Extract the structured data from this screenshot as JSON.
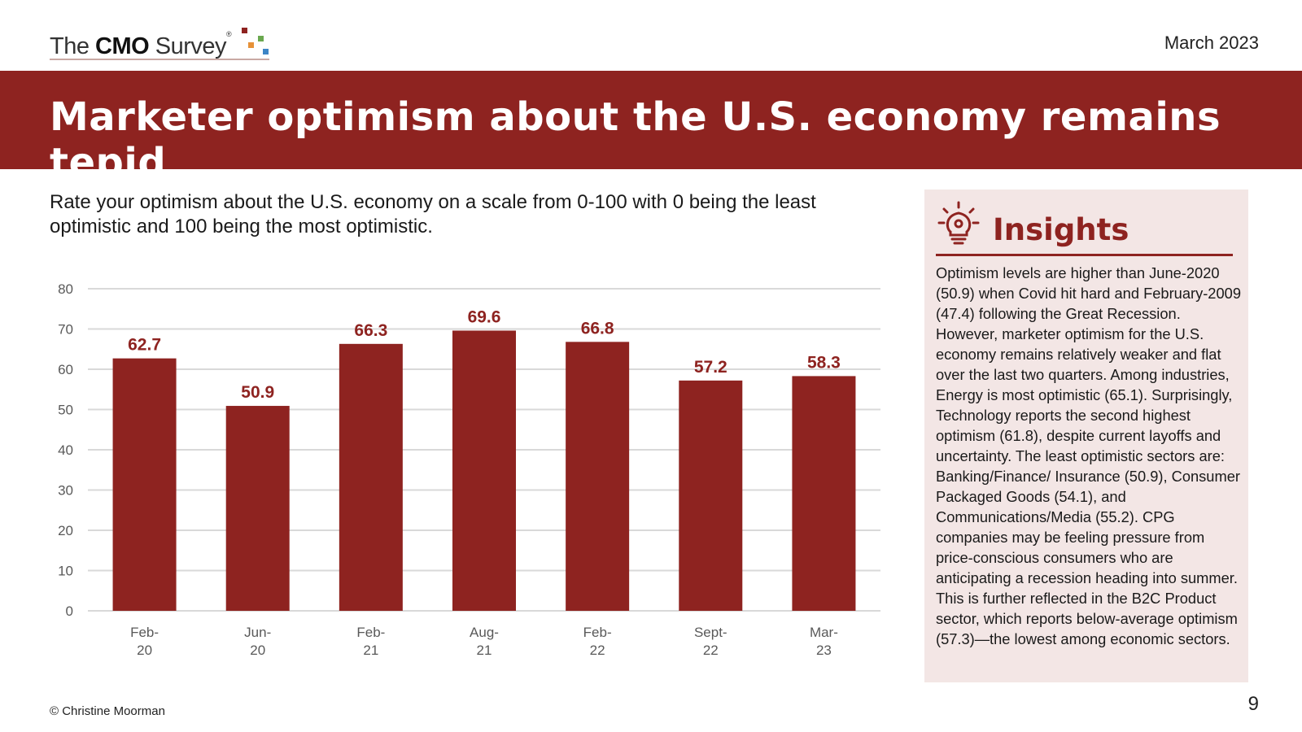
{
  "header": {
    "logo_pre": "The ",
    "logo_bold": "CMO",
    "logo_post": " Survey",
    "logo_reg": "®",
    "date": "March 2023"
  },
  "title": "Marketer optimism about the U.S. economy remains tepid",
  "question": "Rate your optimism about the U.S. economy on a scale from 0-100 with 0 being the least optimistic and 100 being the most optimistic.",
  "chart_data": {
    "type": "bar",
    "title": "",
    "xlabel": "",
    "ylabel": "",
    "categories": [
      [
        "Feb-",
        "20"
      ],
      [
        "Jun-",
        "20"
      ],
      [
        "Feb-",
        "21"
      ],
      [
        "Aug-",
        "21"
      ],
      [
        "Feb-",
        "22"
      ],
      [
        "Sept-",
        "22"
      ],
      [
        "Mar-",
        "23"
      ]
    ],
    "values": [
      62.7,
      50.9,
      66.3,
      69.6,
      66.8,
      57.2,
      58.3
    ],
    "ylim": [
      0,
      80
    ],
    "yticks": [
      0,
      10,
      20,
      30,
      40,
      50,
      60,
      70,
      80
    ],
    "grid": true,
    "bar_color": "#8e2320",
    "label_color": "#8e2320"
  },
  "insights": {
    "title": "Insights",
    "icon": "lightbulb-gear-icon",
    "text": "Optimism levels are higher than June-2020 (50.9) when Covid hit hard and February-2009 (47.4) following the Great Recession. However, marketer optimism for the U.S. economy remains relatively weaker and flat over the last two quarters. Among industries, Energy is most optimistic (65.1). Surprisingly, Technology reports the second highest optimism (61.8), despite current layoffs and uncertainty. The least optimistic sectors are: Banking/Finance/ Insurance (50.9), Consumer Packaged Goods (54.1), and Communications/Media (55.2). CPG companies may be feeling pressure from price-conscious consumers who are anticipating a recession heading into summer. This is further reflected in the B2C Product sector, which reports below-average optimism (57.3)—the lowest among economic sectors."
  },
  "footer": {
    "copyright": "© Christine Moorman",
    "page": "9"
  },
  "colors": {
    "brand_red": "#8e2320",
    "insights_bg": "#f3e6e5"
  }
}
